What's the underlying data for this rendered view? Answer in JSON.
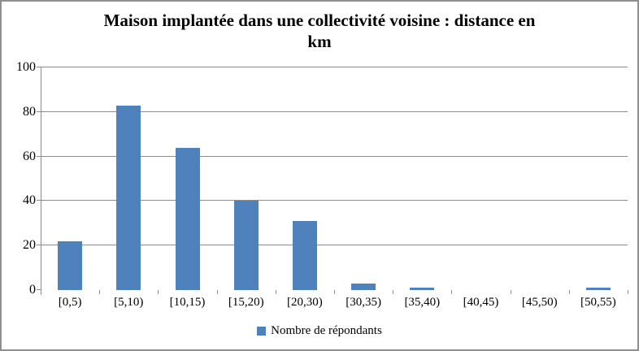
{
  "window": {
    "background": "#ffffff",
    "border_color": "#8f8f8f"
  },
  "title": {
    "line1": "Maison implantée dans une collectivité voisine : distance en",
    "line2": "km"
  },
  "legend": {
    "label": "Nombre de répondants"
  },
  "colors": {
    "bar": "#4F81BD",
    "gridline": "#8c8c8c",
    "axis": "#8c8c8c",
    "text": "#000000"
  },
  "chart_data": {
    "type": "bar",
    "title": "Maison implantée dans une collectivité voisine : distance en km",
    "categories": [
      "[0,5)",
      "[5,10)",
      "[10,15)",
      "[15,20)",
      "[20,30)",
      "[30,35)",
      "[35,40)",
      "[40,45)",
      "[45,50)",
      "[50,55)"
    ],
    "values": [
      22,
      83,
      64,
      40,
      31,
      3,
      1,
      0,
      0,
      1
    ],
    "series": [
      {
        "name": "Nombre de répondants",
        "values": [
          22,
          83,
          64,
          40,
          31,
          3,
          1,
          0,
          0,
          1
        ]
      }
    ],
    "xlabel": "",
    "ylabel": "",
    "ylim": [
      0,
      100
    ],
    "yticks": [
      0,
      20,
      40,
      60,
      80,
      100
    ],
    "grid": true,
    "legend_position": "bottom"
  }
}
